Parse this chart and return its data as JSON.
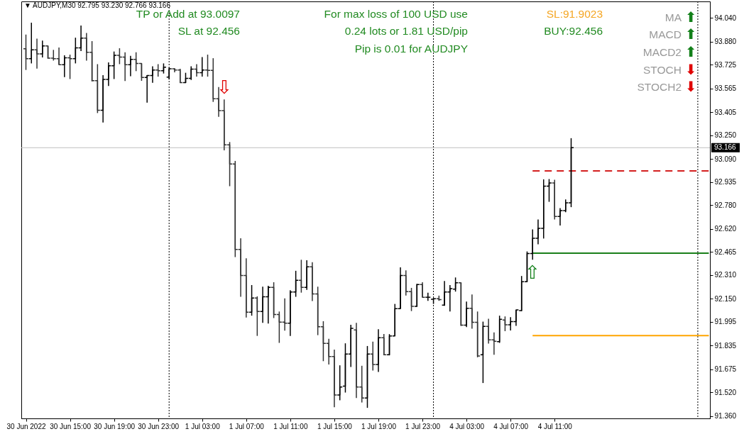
{
  "chart_data": {
    "type": "candlestick",
    "title": "▼ AUDJPY,M30 92.795 93.230 92.766 93.166",
    "categories": [
      "30 Jun 2022",
      null,
      null,
      null,
      null,
      null,
      null,
      null,
      "30 Jun 15:00",
      null,
      null,
      null,
      null,
      null,
      null,
      null,
      "30 Jun 19:00",
      null,
      null,
      null,
      null,
      null,
      null,
      null,
      "30 Jun 23:00",
      null,
      null,
      null,
      null,
      null,
      null,
      null,
      "1 Jul 03:00",
      null,
      null,
      null,
      null,
      null,
      null,
      null,
      "1 Jul 07:00",
      null,
      null,
      null,
      null,
      null,
      null,
      null,
      "1 Jul 11:00",
      null,
      null,
      null,
      null,
      null,
      null,
      null,
      "1 Jul 15:00",
      null,
      null,
      null,
      null,
      null,
      null,
      null,
      "1 Jul 19:00",
      null,
      null,
      null,
      null,
      null,
      null,
      null,
      "1 Jul 23:00",
      null,
      null,
      null,
      null,
      null,
      null,
      null,
      "4 Jul 03:00",
      null,
      null,
      null,
      null,
      null,
      null,
      null,
      "4 Jul 07:00",
      null,
      null,
      null,
      null,
      null,
      null,
      null,
      "4 Jul 11:00",
      null,
      null,
      null,
      null,
      null,
      null,
      null,
      null,
      null,
      null,
      null,
      null,
      null,
      null,
      null,
      null,
      null,
      null,
      null,
      null,
      null,
      null,
      null,
      null,
      null,
      null,
      null,
      null
    ],
    "ohlc": [
      [
        93.832,
        93.927,
        93.689,
        93.765
      ],
      [
        93.765,
        94.007,
        93.733,
        93.824
      ],
      [
        93.824,
        93.899,
        93.698,
        93.797
      ],
      [
        93.797,
        93.887,
        93.773,
        93.851
      ],
      [
        93.851,
        93.851,
        93.765,
        93.768
      ],
      [
        93.768,
        93.824,
        93.752,
        93.765
      ],
      [
        93.765,
        93.84,
        93.724,
        93.724
      ],
      [
        93.724,
        93.787,
        93.641,
        93.771
      ],
      [
        93.771,
        93.792,
        93.628,
        93.765
      ],
      [
        93.765,
        93.906,
        93.733,
        93.838
      ],
      [
        93.838,
        93.988,
        93.816,
        93.903
      ],
      [
        93.903,
        93.938,
        93.752,
        93.808
      ],
      [
        93.808,
        93.883,
        93.612,
        93.617
      ],
      [
        93.617,
        93.728,
        93.399,
        93.418
      ],
      [
        93.418,
        93.654,
        93.336,
        93.625
      ],
      [
        93.625,
        93.74,
        93.581,
        93.717
      ],
      [
        93.717,
        93.813,
        93.628,
        93.787
      ],
      [
        93.787,
        93.835,
        93.728,
        93.776
      ],
      [
        93.776,
        93.808,
        93.614,
        93.724
      ],
      [
        93.724,
        93.784,
        93.647,
        93.76
      ],
      [
        93.76,
        93.808,
        93.681,
        93.733
      ],
      [
        93.733,
        93.733,
        93.616,
        93.638
      ],
      [
        93.638,
        93.654,
        93.469,
        93.651
      ],
      [
        93.651,
        93.713,
        93.603,
        93.689
      ],
      [
        93.689,
        93.728,
        93.644,
        93.684
      ],
      [
        93.684,
        93.733,
        93.665,
        93.708
      ],
      [
        93.641,
        93.705,
        93.625,
        93.697
      ],
      [
        93.697,
        93.7,
        93.673,
        93.689
      ],
      [
        93.689,
        93.697,
        93.601,
        93.604
      ],
      [
        93.604,
        93.67,
        93.601,
        93.633
      ],
      [
        93.633,
        93.713,
        93.622,
        93.694
      ],
      [
        93.694,
        93.728,
        93.644,
        93.67
      ],
      [
        93.67,
        93.776,
        93.644,
        93.689
      ],
      [
        93.689,
        93.792,
        93.644,
        93.686
      ],
      [
        93.686,
        93.768,
        93.474,
        93.495
      ],
      [
        93.495,
        93.574,
        93.374,
        93.415
      ],
      [
        93.415,
        93.49,
        93.148,
        93.185
      ],
      [
        93.185,
        93.204,
        92.907,
        93.056
      ],
      [
        93.056,
        93.077,
        92.43,
        92.481
      ],
      [
        92.481,
        92.557,
        92.163,
        92.306
      ],
      [
        92.306,
        92.422,
        92.024,
        92.059
      ],
      [
        92.059,
        92.242,
        92.036,
        92.155
      ],
      [
        92.155,
        92.166,
        91.9,
        92.064
      ],
      [
        92.064,
        92.231,
        91.988,
        92.163
      ],
      [
        92.163,
        92.237,
        91.983,
        92.226
      ],
      [
        92.226,
        92.261,
        92.02,
        92.044
      ],
      [
        92.044,
        92.064,
        91.853,
        91.993
      ],
      [
        91.993,
        92.152,
        91.935,
        91.985
      ],
      [
        91.985,
        92.207,
        91.9,
        92.195
      ],
      [
        92.195,
        92.338,
        92.163,
        92.274
      ],
      [
        92.274,
        92.412,
        92.191,
        92.226
      ],
      [
        92.226,
        92.409,
        92.21,
        92.365
      ],
      [
        92.365,
        92.396,
        92.134,
        92.182
      ],
      [
        92.182,
        92.231,
        91.905,
        91.961
      ],
      [
        91.961,
        91.999,
        91.73,
        91.85
      ],
      [
        91.85,
        91.88,
        91.707,
        91.761
      ],
      [
        91.761,
        91.808,
        91.42,
        91.503
      ],
      [
        91.503,
        91.702,
        91.467,
        91.556
      ],
      [
        91.562,
        91.85,
        91.519,
        91.778
      ],
      [
        91.778,
        91.975,
        91.691,
        91.951
      ],
      [
        91.94,
        91.988,
        91.482,
        91.556
      ],
      [
        91.556,
        91.699,
        91.452,
        91.482
      ],
      [
        91.482,
        91.832,
        91.416,
        91.778
      ],
      [
        91.778,
        91.861,
        91.667,
        91.707
      ],
      [
        91.707,
        91.945,
        91.657,
        91.888
      ],
      [
        91.888,
        91.913,
        91.77,
        91.773
      ],
      [
        91.773,
        91.912,
        91.769,
        91.9
      ],
      [
        91.9,
        92.115,
        91.9,
        92.083
      ],
      [
        92.083,
        92.361,
        92.083,
        92.306
      ],
      [
        92.306,
        92.341,
        92.171,
        92.198
      ],
      [
        92.198,
        92.223,
        92.067,
        92.099
      ],
      [
        92.099,
        92.25,
        92.096,
        92.245
      ],
      [
        92.245,
        92.261,
        92.16,
        92.16
      ],
      [
        92.16,
        92.19,
        92.136,
        92.16
      ],
      [
        92.147,
        92.155,
        92.115,
        92.15
      ],
      [
        92.15,
        92.171,
        92.136,
        92.144
      ],
      [
        92.107,
        92.269,
        92.102,
        92.195
      ],
      [
        92.195,
        92.242,
        92.064,
        92.218
      ],
      [
        92.214,
        92.293,
        92.198,
        92.257
      ],
      [
        92.257,
        92.258,
        91.967,
        91.972
      ],
      [
        91.972,
        92.131,
        91.959,
        92.086
      ],
      [
        92.086,
        92.179,
        91.948,
        91.991
      ],
      [
        91.991,
        92.064,
        91.756,
        91.765
      ],
      [
        91.773,
        91.996,
        91.583,
        91.964
      ],
      [
        91.964,
        92.015,
        91.848,
        91.873
      ],
      [
        91.873,
        91.924,
        91.773,
        91.864
      ],
      [
        91.861,
        92.036,
        91.853,
        92.012
      ],
      [
        92.007,
        92.031,
        91.932,
        91.975
      ],
      [
        91.975,
        92.026,
        91.937,
        91.996
      ],
      [
        91.996,
        92.075,
        91.967,
        92.075
      ],
      [
        92.07,
        92.303,
        92.067,
        92.264
      ],
      [
        92.264,
        92.468,
        92.264,
        92.454
      ],
      [
        92.454,
        92.616,
        92.412,
        92.557
      ],
      [
        92.557,
        92.683,
        92.516,
        92.624
      ],
      [
        92.624,
        92.953,
        92.555,
        92.907
      ],
      [
        92.907,
        92.955,
        92.802,
        92.929
      ],
      [
        92.929,
        92.95,
        92.683,
        92.703
      ],
      [
        92.703,
        92.759,
        92.643,
        92.743
      ],
      [
        92.743,
        92.818,
        92.732,
        92.795
      ],
      [
        92.795,
        93.23,
        92.766,
        93.166
      ],
      null,
      null,
      null,
      null,
      null,
      null,
      null,
      null,
      null,
      null,
      null,
      null,
      null,
      null,
      null,
      null,
      null,
      null,
      null,
      null,
      null,
      null,
      null,
      null,
      null
    ],
    "colors": [
      "#333333",
      "#000000",
      "#333333",
      "#000000",
      "#333333",
      "#333333",
      "#333333",
      "#000000",
      "#333333",
      "#000000",
      "#000000",
      "#333333",
      "#333333",
      "#333333",
      "#000000",
      "#000000",
      "#000000",
      "#333333",
      "#333333",
      "#000000",
      "#333333",
      "#333333",
      "#000000",
      "#000000",
      "#333333",
      "#000000",
      "#000000",
      "#333333",
      "#333333",
      "#000000",
      "#000000",
      "#333333",
      "#000000",
      "#333333",
      "#333333",
      "#333333",
      "#333333",
      "#333333",
      "#333333",
      "#333333",
      "#333333",
      "#000000",
      "#333333",
      "#000000",
      "#000000",
      "#333333",
      "#333333",
      "#333333",
      "#000000",
      "#000000",
      "#333333",
      "#000000",
      "#333333",
      "#333333",
      "#333333",
      "#333333",
      "#333333",
      "#000000",
      "#000000",
      "#000000",
      "#333333",
      "#333333",
      "#000000",
      "#333333",
      "#000000",
      "#333333",
      "#000000",
      "#000000",
      "#000000",
      "#333333",
      "#333333",
      "#000000",
      "#333333",
      "#000000",
      "#000000",
      "#333333",
      "#000000",
      "#000000",
      "#000000",
      "#333333",
      "#000000",
      "#333333",
      "#333333",
      "#000000",
      "#333333",
      "#333333",
      "#000000",
      "#333333",
      "#000000",
      "#000000",
      "#000000",
      "#000000",
      "#000000",
      "#000000",
      "#000000",
      "#000000",
      "#333333",
      "#000000",
      "#000000",
      "#000000",
      null,
      null,
      null,
      null,
      null,
      null,
      null,
      null,
      null,
      null,
      null,
      null,
      null,
      null,
      null,
      null,
      null,
      null,
      null,
      null,
      null,
      null,
      null,
      null,
      null
    ],
    "series": [
      {
        "type": "line",
        "color": "#d42020",
        "line_style": "dashed",
        "values": [
          null,
          null,
          null,
          null,
          null,
          null,
          null,
          null,
          null,
          null,
          null,
          null,
          null,
          null,
          null,
          null,
          null,
          null,
          null,
          null,
          null,
          null,
          null,
          null,
          null,
          null,
          null,
          null,
          null,
          null,
          null,
          null,
          null,
          null,
          null,
          null,
          null,
          null,
          null,
          null,
          null,
          null,
          null,
          null,
          null,
          null,
          null,
          null,
          null,
          null,
          null,
          null,
          null,
          null,
          null,
          null,
          null,
          null,
          null,
          null,
          null,
          null,
          null,
          null,
          null,
          null,
          null,
          null,
          null,
          null,
          null,
          null,
          null,
          null,
          null,
          null,
          null,
          null,
          null,
          null,
          null,
          null,
          null,
          null,
          null,
          null,
          null,
          null,
          null,
          null,
          null,
          null,
          93.01,
          93.01,
          93.01,
          93.01,
          93.01,
          93.01,
          93.01,
          93.01,
          93.01,
          93.01,
          93.01,
          93.01,
          93.01,
          93.01,
          93.01,
          93.01,
          93.01,
          93.01,
          93.01,
          93.01,
          93.01,
          93.01,
          93.01,
          93.01,
          93.01,
          93.01,
          93.01,
          93.01,
          93.01,
          93.01,
          93.01,
          93.01,
          93.01
        ]
      },
      {
        "type": "line",
        "color": "#1a7f1a",
        "values": [
          null,
          null,
          null,
          null,
          null,
          null,
          null,
          null,
          null,
          null,
          null,
          null,
          null,
          null,
          null,
          null,
          null,
          null,
          null,
          null,
          null,
          null,
          null,
          null,
          null,
          null,
          null,
          null,
          null,
          null,
          null,
          null,
          null,
          null,
          null,
          null,
          null,
          null,
          null,
          null,
          null,
          null,
          null,
          null,
          null,
          null,
          null,
          null,
          null,
          null,
          null,
          null,
          null,
          null,
          null,
          null,
          null,
          null,
          null,
          null,
          null,
          null,
          null,
          null,
          null,
          null,
          null,
          null,
          null,
          null,
          null,
          null,
          null,
          null,
          null,
          null,
          null,
          null,
          null,
          null,
          null,
          null,
          null,
          null,
          null,
          null,
          null,
          null,
          null,
          null,
          null,
          null,
          92.456,
          92.456,
          92.456,
          92.456,
          92.456,
          92.456,
          92.456,
          92.456,
          92.456,
          92.456,
          92.456,
          92.456,
          92.456,
          92.456,
          92.456,
          92.456,
          92.456,
          92.456,
          92.456,
          92.456,
          92.456,
          92.456,
          92.456,
          92.456,
          92.456,
          92.456,
          92.456,
          92.456,
          92.456,
          92.456,
          92.456,
          92.456,
          92.456
        ]
      },
      {
        "type": "line",
        "color": "#ffa500",
        "values": [
          null,
          null,
          null,
          null,
          null,
          null,
          null,
          null,
          null,
          null,
          null,
          null,
          null,
          null,
          null,
          null,
          null,
          null,
          null,
          null,
          null,
          null,
          null,
          null,
          null,
          null,
          null,
          null,
          null,
          null,
          null,
          null,
          null,
          null,
          null,
          null,
          null,
          null,
          null,
          null,
          null,
          null,
          null,
          null,
          null,
          null,
          null,
          null,
          null,
          null,
          null,
          null,
          null,
          null,
          null,
          null,
          null,
          null,
          null,
          null,
          null,
          null,
          null,
          null,
          null,
          null,
          null,
          null,
          null,
          null,
          null,
          null,
          null,
          null,
          null,
          null,
          null,
          null,
          null,
          null,
          null,
          null,
          null,
          null,
          null,
          null,
          null,
          null,
          null,
          null,
          null,
          null,
          91.902,
          91.902,
          91.902,
          91.902,
          91.902,
          91.902,
          91.902,
          91.902,
          91.902,
          91.902,
          91.902,
          91.902,
          91.902,
          91.902,
          91.902,
          91.902,
          91.902,
          91.902,
          91.902,
          91.902,
          91.902,
          91.902,
          91.902,
          91.902,
          91.902,
          91.902,
          91.902,
          91.902,
          91.902,
          91.902,
          91.902,
          91.902,
          91.902
        ]
      }
    ],
    "ylim": [
      91.345,
      94.15
    ],
    "yticks": [
      {
        "value": 94.04,
        "label": "94.040"
      },
      {
        "value": 93.88,
        "label": "93.880"
      },
      93.725,
      93.565,
      93.405,
      {
        "value": 93.25,
        "label": "93.250"
      },
      {
        "value": 93.09,
        "label": "93.090"
      },
      92.935,
      {
        "value": 92.78,
        "label": "92.780"
      },
      {
        "value": 92.62,
        "label": "92.620"
      },
      92.465,
      {
        "value": 92.31,
        "label": "92.310"
      },
      {
        "value": 92.15,
        "label": "92.150"
      },
      91.995,
      91.835,
      91.675,
      {
        "value": 91.52,
        "label": "91.520"
      },
      {
        "value": 91.36,
        "label": "91.360"
      }
    ],
    "ref_lines": [
      {
        "axis": "y",
        "value": 93.166,
        "label": "93.166",
        "color": "#c0c0c0"
      }
    ],
    "annotations": [
      "TP or Add at 93.0097",
      "SL at 92.456",
      "For max loss of 100 USD use",
      "0.24 lots or 1.81 USD/pip",
      "Pip is 0.01 for AUDJPY",
      "SL:91.9023",
      "BUY:92.456",
      "MA",
      "⬆",
      "MACD",
      "⬆",
      "MACD2",
      "⬆",
      "STOCH",
      "⬇",
      "STOCH2",
      "⬇",
      "⇩",
      "⇧"
    ]
  }
}
